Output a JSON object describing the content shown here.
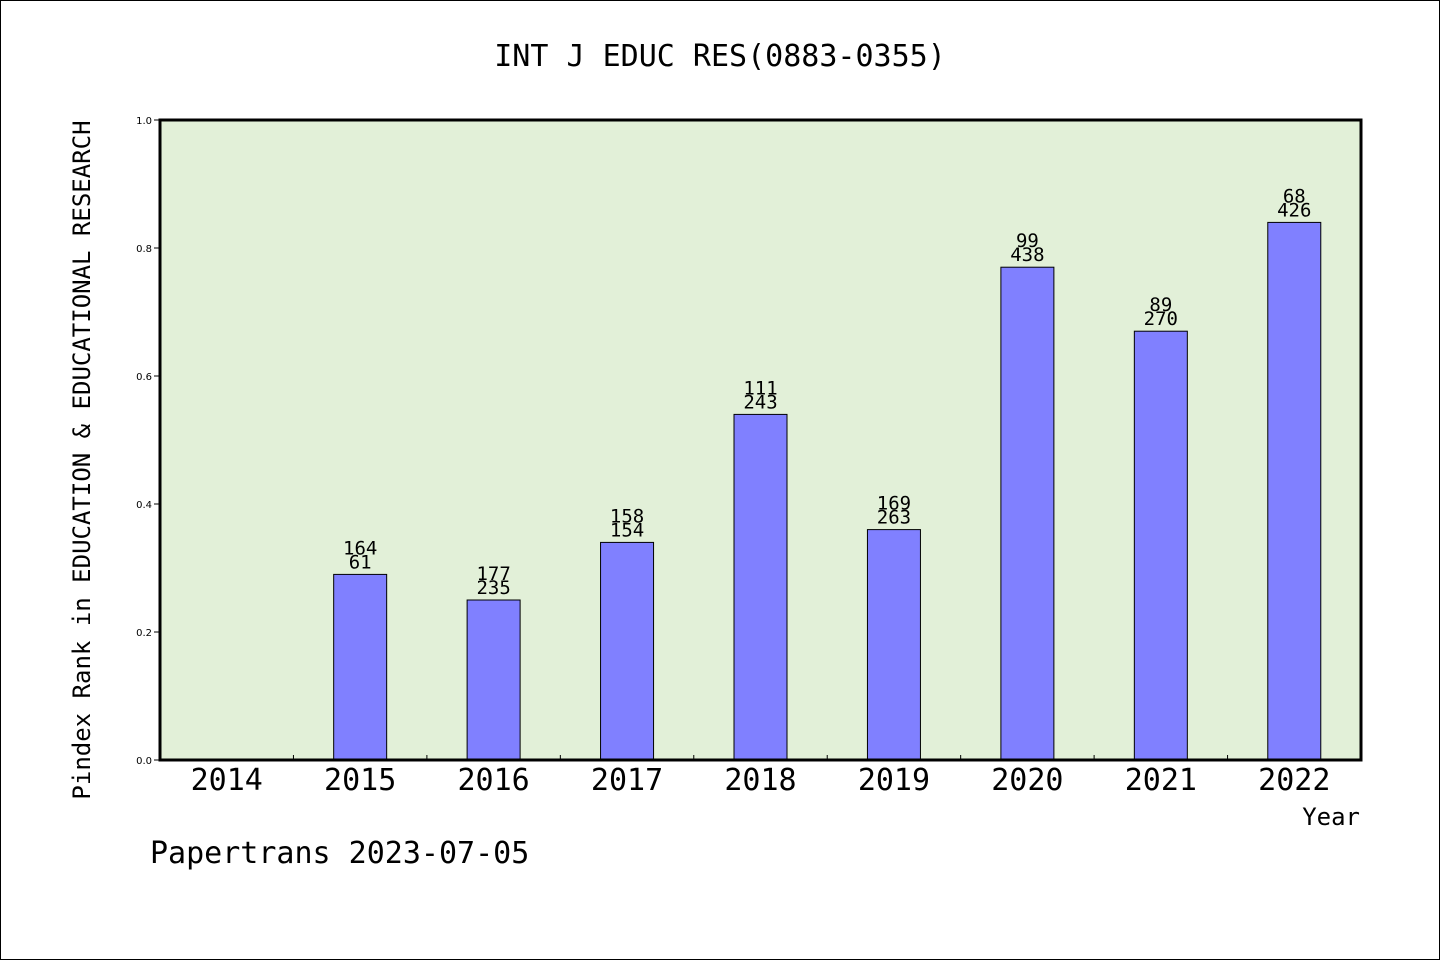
{
  "chart_data": {
    "type": "bar",
    "title": "INT J EDUC RES(0883-0355)",
    "ylabel": "Pindex Rank in EDUCATION & EDUCATIONAL RESEARCH",
    "xlabel": "Year",
    "footer": "Papertrans 2023-07-05",
    "categories": [
      "2014",
      "2015",
      "2016",
      "2017",
      "2018",
      "2019",
      "2020",
      "2021",
      "2022"
    ],
    "values": [
      null,
      0.29,
      0.25,
      0.34,
      0.54,
      0.36,
      0.77,
      0.67,
      0.84
    ],
    "labels_top": [
      "",
      "164",
      "177",
      "158",
      "111",
      "169",
      "99",
      "89",
      "68"
    ],
    "labels_bottom": [
      "",
      "61",
      "235",
      "154",
      "243",
      "263",
      "438",
      "270",
      "426"
    ],
    "ylim": [
      0,
      1.0
    ],
    "yticks": [
      "0.0",
      "0.2",
      "0.4",
      "0.6",
      "0.8",
      "1.0"
    ],
    "grid": false,
    "colors": {
      "plot_background": "#e2f0d8",
      "bar_fill": "#8080ff",
      "bar_stroke": "#000000",
      "axis": "#000000"
    }
  }
}
